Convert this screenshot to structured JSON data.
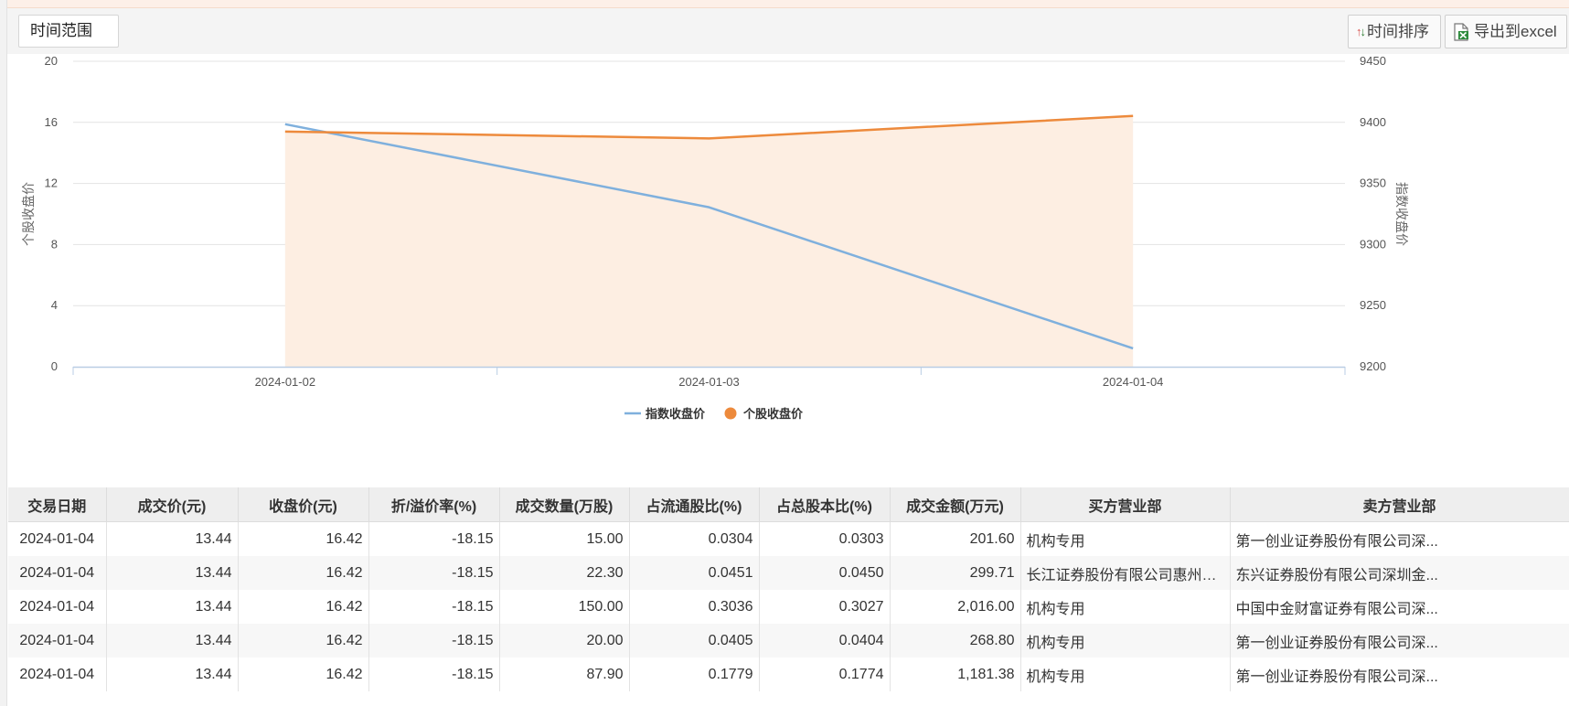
{
  "toolbar": {
    "range_label": "时间范围",
    "sort_label": "时间排序",
    "export_label": "导出到excel",
    "sort_icon": "sort-arrows-icon",
    "export_icon": "excel-export-icon"
  },
  "chart_data": {
    "type": "line",
    "categories": [
      "2024-01-02",
      "2024-01-03",
      "2024-01-04"
    ],
    "series": [
      {
        "name": "指数收盘价",
        "axis": "right",
        "values": [
          9398.5,
          9330.5,
          9215
        ],
        "color": "#7fb0dd",
        "fill": false
      },
      {
        "name": "个股收盘价",
        "axis": "left",
        "values": [
          15.4,
          14.95,
          16.42
        ],
        "color": "#ed8a3c",
        "fill": true,
        "fill_color": "#fdeee2"
      }
    ],
    "ylabel_left": "个股收盘价",
    "ylabel_right": "指数收盘价",
    "ylim_left": [
      0,
      20
    ],
    "yticks_left": [
      0,
      4,
      8,
      12,
      16,
      20
    ],
    "ylim_right": [
      9200,
      9450
    ],
    "yticks_right": [
      9200,
      9250,
      9300,
      9350,
      9400,
      9450
    ],
    "grid": true,
    "legend_position": "bottom"
  },
  "table": {
    "columns": [
      "交易日期",
      "成交价(元)",
      "收盘价(元)",
      "折/溢价率(%)",
      "成交数量(万股)",
      "占流通股比(%)",
      "占总股本比(%)",
      "成交金额(万元)",
      "买方营业部",
      "卖方营业部"
    ],
    "rows": [
      [
        "2024-01-04",
        "13.44",
        "16.42",
        "-18.15",
        "15.00",
        "0.0304",
        "0.0303",
        "201.60",
        "机构专用",
        "第一创业证券股份有限公司深..."
      ],
      [
        "2024-01-04",
        "13.44",
        "16.42",
        "-18.15",
        "22.30",
        "0.0451",
        "0.0450",
        "299.71",
        "长江证券股份有限公司惠州金...",
        "东兴证券股份有限公司深圳金..."
      ],
      [
        "2024-01-04",
        "13.44",
        "16.42",
        "-18.15",
        "150.00",
        "0.3036",
        "0.3027",
        "2,016.00",
        "机构专用",
        "中国中金财富证券有限公司深..."
      ],
      [
        "2024-01-04",
        "13.44",
        "16.42",
        "-18.15",
        "20.00",
        "0.0405",
        "0.0404",
        "268.80",
        "机构专用",
        "第一创业证券股份有限公司深..."
      ],
      [
        "2024-01-04",
        "13.44",
        "16.42",
        "-18.15",
        "87.90",
        "0.1779",
        "0.1774",
        "1,181.38",
        "机构专用",
        "第一创业证券股份有限公司深..."
      ]
    ]
  }
}
